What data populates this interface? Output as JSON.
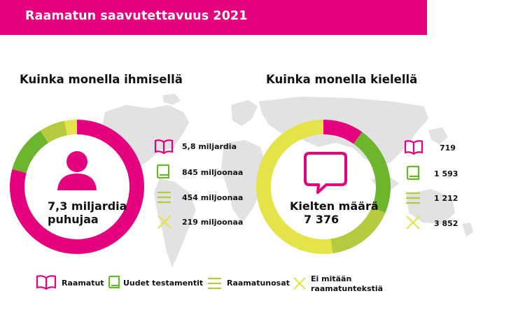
{
  "header": {
    "title": "Raamatun saavutettavuus 2021"
  },
  "colors": {
    "magenta": "#e5007e",
    "green": "#6cb52d",
    "lime": "#b5ca3e",
    "yellow": "#e4e34a",
    "map": "#e2e2e2"
  },
  "chart_data": [
    {
      "type": "pie",
      "title": "Kuinka monella ihmisellä",
      "center_label": "7,3 miljardia",
      "center_label_2": "puhujaa",
      "categories": [
        "Raamatut",
        "Uudet testamentit",
        "Raamatunosat",
        "Ei mitään raamatuntekstiä"
      ],
      "value_labels": [
        "5,8 miljardia",
        "845 miljoonaa",
        "454 miljoonaa",
        "219 miljoonaa"
      ],
      "values": [
        5.8,
        0.845,
        0.454,
        0.219
      ],
      "colors": [
        "#e5007e",
        "#6cb52d",
        "#b5ca3e",
        "#e4e34a"
      ]
    },
    {
      "type": "pie",
      "title": "Kuinka monella kielellä",
      "center_label": "Kielten määrä",
      "center_label_2": "7 376",
      "categories": [
        "Raamatut",
        "Uudet testamentit",
        "Raamatunosat",
        "Ei mitään raamatuntekstiä"
      ],
      "value_labels": [
        "719",
        "1 593",
        "1 212",
        "3 852"
      ],
      "values": [
        719,
        1593,
        1212,
        3852
      ],
      "colors": [
        "#e5007e",
        "#6cb52d",
        "#b5ca3e",
        "#e4e34a"
      ]
    }
  ],
  "legend": {
    "items": [
      {
        "label": "Raamatut",
        "icon": "book-icon"
      },
      {
        "label": "Uudet testamentit",
        "icon": "book-closed-icon"
      },
      {
        "label": "Raamatunosat",
        "icon": "lines-icon"
      },
      {
        "label_1": "Ei mitään",
        "label_2": "raamatuntekstiä",
        "icon": "cross-icon"
      }
    ]
  },
  "icons": {
    "person": "person-icon",
    "speech": "speech-bubble-icon",
    "map": "world-map"
  }
}
